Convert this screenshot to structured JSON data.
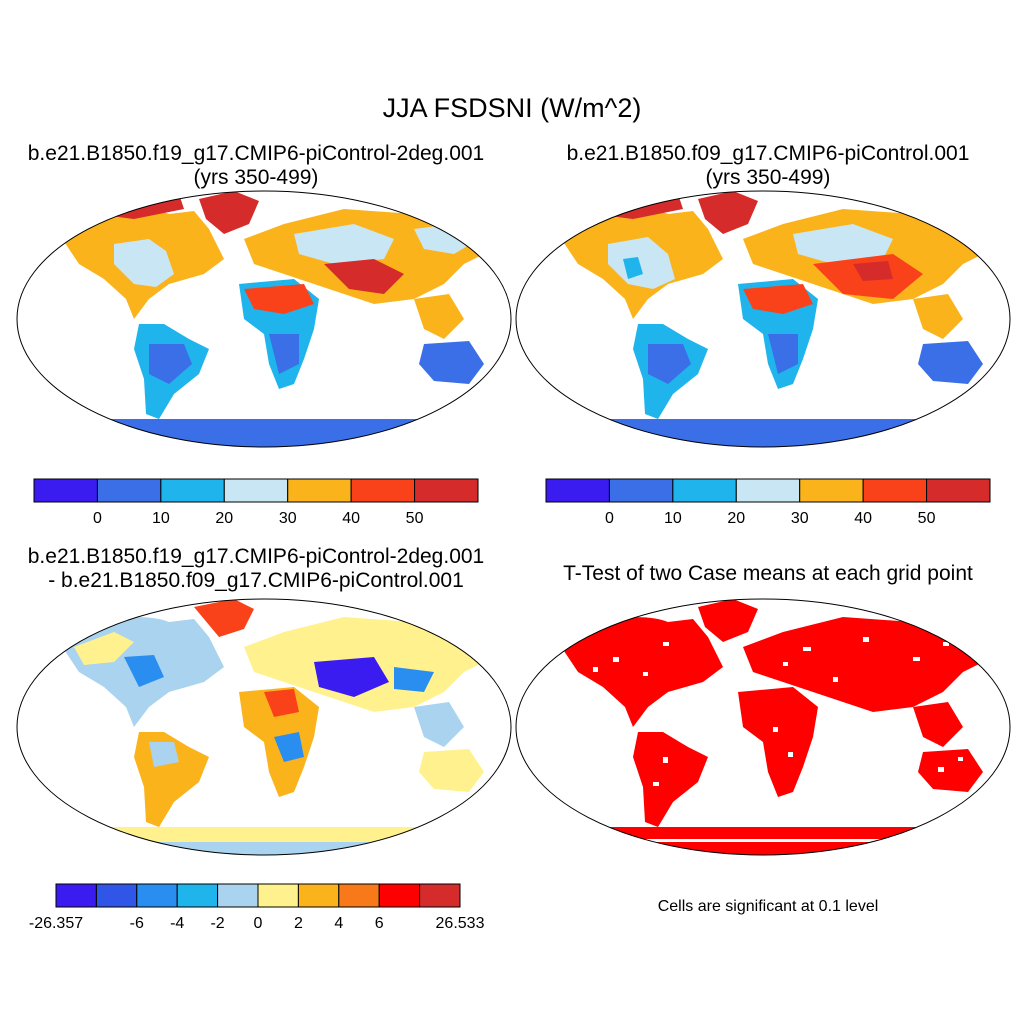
{
  "title": "JJA FSDSNI (W/m^2)",
  "panels": [
    {
      "line1": "b.e21.B1850.f19_g17.CMIP6-piControl-2deg.001",
      "line2": "(yrs 350-499)"
    },
    {
      "line1": "b.e21.B1850.f09_g17.CMIP6-piControl.001",
      "line2": "(yrs 350-499)"
    },
    {
      "line1": "b.e21.B1850.f19_g17.CMIP6-piControl-2deg.001",
      "line2": "- b.e21.B1850.f09_g17.CMIP6-piControl.001"
    },
    {
      "line1": "T-Test of two Case means at each grid point",
      "line2": ""
    }
  ],
  "colorbar_abs": {
    "colors": [
      "#3a1cf0",
      "#3a6fe8",
      "#1fb4ec",
      "#c9e6f5",
      "#fbb31b",
      "#f9421a",
      "#d52b2b"
    ],
    "labels": [
      "0",
      "10",
      "20",
      "30",
      "40",
      "50"
    ]
  },
  "colorbar_diff": {
    "colors": [
      "#3a1cf0",
      "#2f56e6",
      "#2a8ef0",
      "#1fb4ec",
      "#a9d3ee",
      "#fff28e",
      "#fbb31b",
      "#f7791a",
      "#ff0000",
      "#d52b2b"
    ],
    "labels": [
      "-26.357",
      "-6",
      "-4",
      "-2",
      "0",
      "2",
      "4",
      "6",
      "26.533"
    ]
  },
  "significance_note": "Cells are significant at 0.1 level"
}
